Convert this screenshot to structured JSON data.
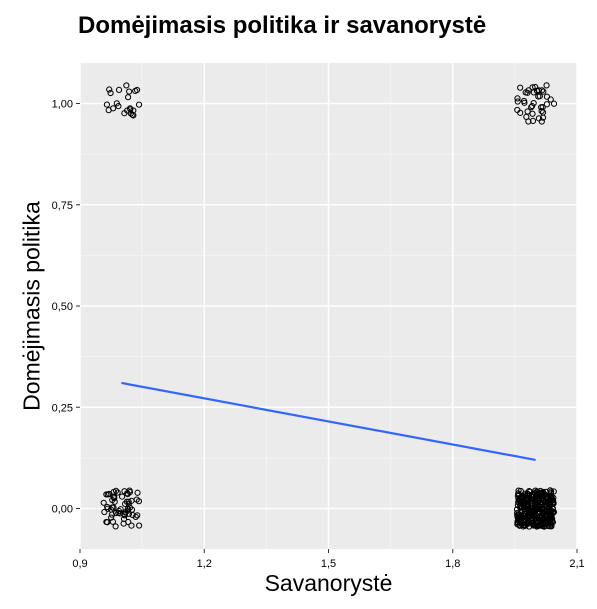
{
  "chart_data": {
    "type": "scatter",
    "title": "Domėjimasis politika ir savanorystė",
    "xlabel": "Savanorystė",
    "ylabel": "Domėjimasis politika",
    "xlim": [
      0.9,
      2.1
    ],
    "ylim": [
      -0.1,
      1.1
    ],
    "x_ticks": [
      "0,9",
      "1,2",
      "1,5",
      "1,8",
      "2,1"
    ],
    "x_tick_values": [
      0.9,
      1.2,
      1.5,
      1.8,
      2.1
    ],
    "y_ticks": [
      "0,00",
      "0,25",
      "0,50",
      "0,75",
      "1,00"
    ],
    "y_tick_values": [
      0,
      0.25,
      0.5,
      0.75,
      1.0
    ],
    "grid": true,
    "background": "#EBEBEB",
    "point_color": "#000000",
    "line_color": "#3366FF",
    "jitter_clusters": [
      {
        "x": 1,
        "y": 1,
        "n": 22
      },
      {
        "x": 2,
        "y": 1,
        "n": 40
      },
      {
        "x": 1,
        "y": 0,
        "n": 60
      },
      {
        "x": 2,
        "y": 0,
        "n": 320
      }
    ],
    "fit_line": {
      "x": [
        1.0,
        2.0
      ],
      "y": [
        0.31,
        0.12
      ]
    }
  }
}
